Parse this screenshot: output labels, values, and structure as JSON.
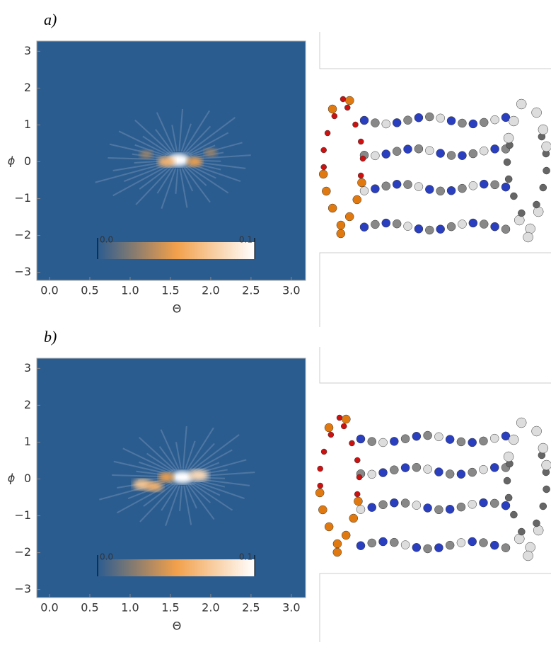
{
  "chart_data": [
    {
      "type": "heatmap",
      "label": "a)",
      "xlabel": "Θ",
      "ylabel": "ϕ",
      "xlim": [
        0,
        3.1416
      ],
      "ylim": [
        -3.1416,
        3.1416
      ],
      "xticks": [
        {
          "value": 0,
          "label": "0.0"
        },
        {
          "value": 0.5,
          "label": "0.5"
        },
        {
          "value": 1,
          "label": "1.0"
        },
        {
          "value": 1.5,
          "label": "1.5"
        },
        {
          "value": 2,
          "label": "2.0"
        },
        {
          "value": 2.5,
          "label": "2.5"
        },
        {
          "value": 3,
          "label": "3.0"
        }
      ],
      "yticks": [
        {
          "value": 3,
          "label": "3"
        },
        {
          "value": 2,
          "label": "2"
        },
        {
          "value": 1,
          "label": "1"
        },
        {
          "value": 0,
          "label": "0"
        },
        {
          "value": -1,
          "label": "−1"
        },
        {
          "value": -2,
          "label": "−2"
        },
        {
          "value": -3,
          "label": "−3"
        }
      ],
      "clim": [
        0,
        0.1
      ],
      "cticks": [
        {
          "value": 0,
          "label": "0.0"
        },
        {
          "value": 0.1,
          "label": "0.1"
        }
      ],
      "colors": [
        "#2b5c90",
        "#f2a04a",
        "#ffffff"
      ],
      "peaks": {
        "x": [
          1.6,
          1.45,
          1.8,
          1.2,
          2.0
        ],
        "y": [
          0.05,
          0.0,
          0.0,
          0.2,
          0.25
        ],
        "values": [
          0.1,
          0.06,
          0.05,
          0.03,
          0.03
        ]
      }
    },
    {
      "type": "heatmap",
      "label": "b)",
      "xlabel": "Θ",
      "ylabel": "ϕ",
      "xlim": [
        0,
        3.1416
      ],
      "ylim": [
        -3.1416,
        3.1416
      ],
      "xticks": [
        {
          "value": 0,
          "label": "0.0"
        },
        {
          "value": 0.5,
          "label": "0.5"
        },
        {
          "value": 1,
          "label": "1.0"
        },
        {
          "value": 1.5,
          "label": "1.5"
        },
        {
          "value": 2,
          "label": "2.0"
        },
        {
          "value": 2.5,
          "label": "2.5"
        },
        {
          "value": 3,
          "label": "3.0"
        }
      ],
      "yticks": [
        {
          "value": 3,
          "label": "3"
        },
        {
          "value": 2,
          "label": "2"
        },
        {
          "value": 1,
          "label": "1"
        },
        {
          "value": 0,
          "label": "0"
        },
        {
          "value": -1,
          "label": "−1"
        },
        {
          "value": -2,
          "label": "−2"
        },
        {
          "value": -3,
          "label": "−3"
        }
      ],
      "clim": [
        0,
        0.1
      ],
      "cticks": [
        {
          "value": 0,
          "label": "0.0"
        },
        {
          "value": 0.1,
          "label": "0.1"
        }
      ],
      "colors": [
        "#2b5c90",
        "#f2a04a",
        "#ffffff"
      ],
      "peaks": {
        "x": [
          1.65,
          1.85,
          1.15,
          1.3,
          1.45
        ],
        "y": [
          0.05,
          0.1,
          -0.15,
          -0.2,
          0.05
        ],
        "values": [
          0.1,
          0.08,
          0.07,
          0.06,
          0.05
        ]
      }
    }
  ]
}
